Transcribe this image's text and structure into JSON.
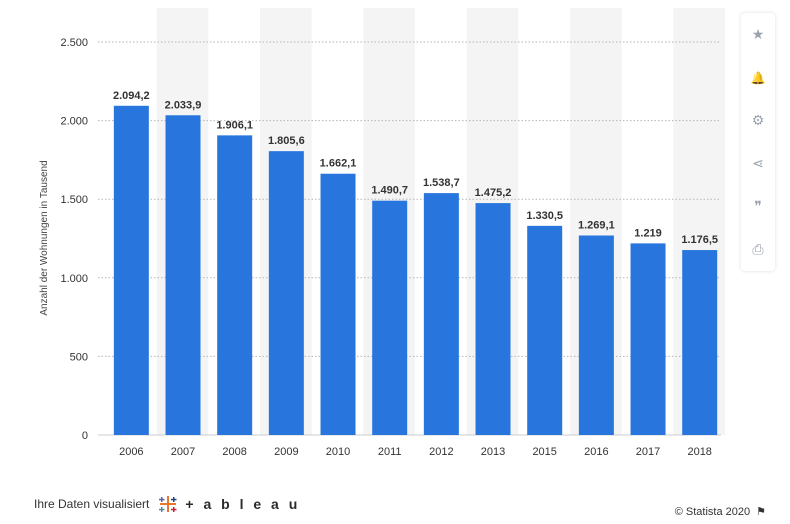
{
  "chart_data": {
    "type": "bar",
    "categories": [
      "2006",
      "2007",
      "2008",
      "2009",
      "2010",
      "2011",
      "2012",
      "2013",
      "2015",
      "2016",
      "2017",
      "2018"
    ],
    "values": [
      2094.2,
      2033.9,
      1906.1,
      1805.6,
      1662.1,
      1490.7,
      1538.7,
      1475.2,
      1330.5,
      1269.1,
      1219,
      1176.5
    ],
    "value_labels": [
      "2.094,2",
      "2.033,9",
      "1.906,1",
      "1.805,6",
      "1.662,1",
      "1.490,7",
      "1.538,7",
      "1.475,2",
      "1.330,5",
      "1.269,1",
      "1.219",
      "1.176,5"
    ],
    "ylabel": "Anzahl der Wohnungen in Tausend",
    "ylim": [
      0,
      2500
    ],
    "yticks": [
      0,
      500,
      1000,
      1500,
      2000,
      2500
    ],
    "ytick_labels": [
      "0",
      "500",
      "1.000",
      "1.500",
      "2.000",
      "2.500"
    ],
    "grid": true,
    "bar_color": "#2876dd"
  },
  "sidebar": {
    "icons": [
      {
        "name": "star-icon",
        "glyph": "★"
      },
      {
        "name": "bell-icon",
        "glyph": "🔔"
      },
      {
        "name": "gear-icon",
        "glyph": "⚙"
      },
      {
        "name": "share-icon",
        "glyph": "⋖"
      },
      {
        "name": "quote-icon",
        "glyph": "❞"
      },
      {
        "name": "print-icon",
        "glyph": "⎙"
      }
    ]
  },
  "footer": {
    "visualized_by": "Ihre Daten visualisiert",
    "brand": "+ a b l e a u",
    "copyright": "© Statista 2020",
    "flag_glyph": "⚑"
  }
}
